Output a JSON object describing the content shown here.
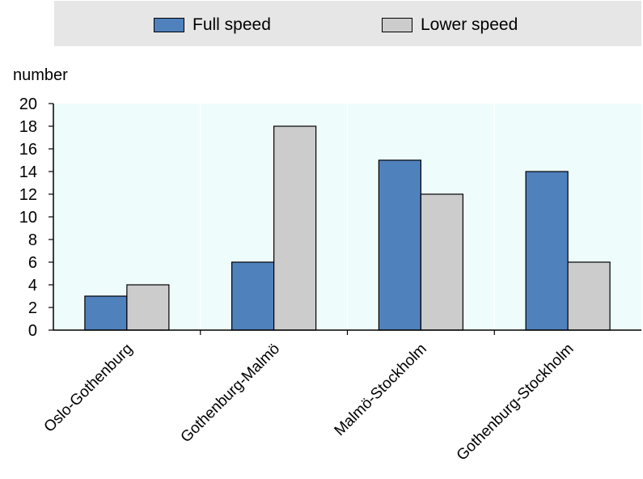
{
  "chart_data": {
    "type": "bar",
    "categories": [
      "Oslo-Gothenburg",
      "Gothenburg-Malmö",
      "Malmö-Stockholm",
      "Gothenburg-Stockholm"
    ],
    "series": [
      {
        "name": "Full speed",
        "values": [
          3,
          6,
          15,
          14
        ],
        "color": "#4f81bd"
      },
      {
        "name": "Lower speed",
        "values": [
          4,
          18,
          12,
          6
        ],
        "color": "#cccccc"
      }
    ],
    "ylabel": "number",
    "ylim": [
      0,
      20
    ],
    "yticks": [
      0,
      2,
      4,
      6,
      8,
      10,
      12,
      14,
      16,
      18,
      20
    ],
    "grid": true,
    "legend_position": "top",
    "plot_background": "#eefcfc"
  }
}
